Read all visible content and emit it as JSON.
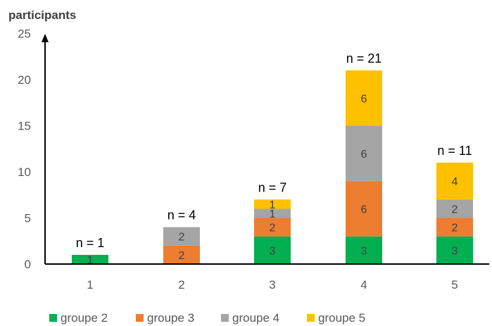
{
  "chart_data": {
    "type": "bar",
    "stacked": true,
    "ylabel": "participants",
    "xlabel": "",
    "ylim": [
      0,
      25
    ],
    "yticks": [
      0,
      5,
      10,
      15,
      20,
      25
    ],
    "categories": [
      "1",
      "2",
      "3",
      "4",
      "5"
    ],
    "series": [
      {
        "name": "groupe 2",
        "color": "#00B050",
        "values": [
          1,
          0,
          3,
          3,
          3
        ]
      },
      {
        "name": "groupe 3",
        "color": "#ED7D31",
        "values": [
          0,
          2,
          2,
          6,
          2
        ]
      },
      {
        "name": "groupe 4",
        "color": "#A5A5A5",
        "values": [
          0,
          2,
          1,
          6,
          2
        ]
      },
      {
        "name": "groupe 5",
        "color": "#FFC000",
        "values": [
          0,
          0,
          1,
          6,
          4
        ]
      }
    ],
    "totals": [
      "n = 1",
      "n = 4",
      "n = 7",
      "n = 21",
      "n = 11"
    ],
    "grid": false,
    "legend": "bottom"
  }
}
